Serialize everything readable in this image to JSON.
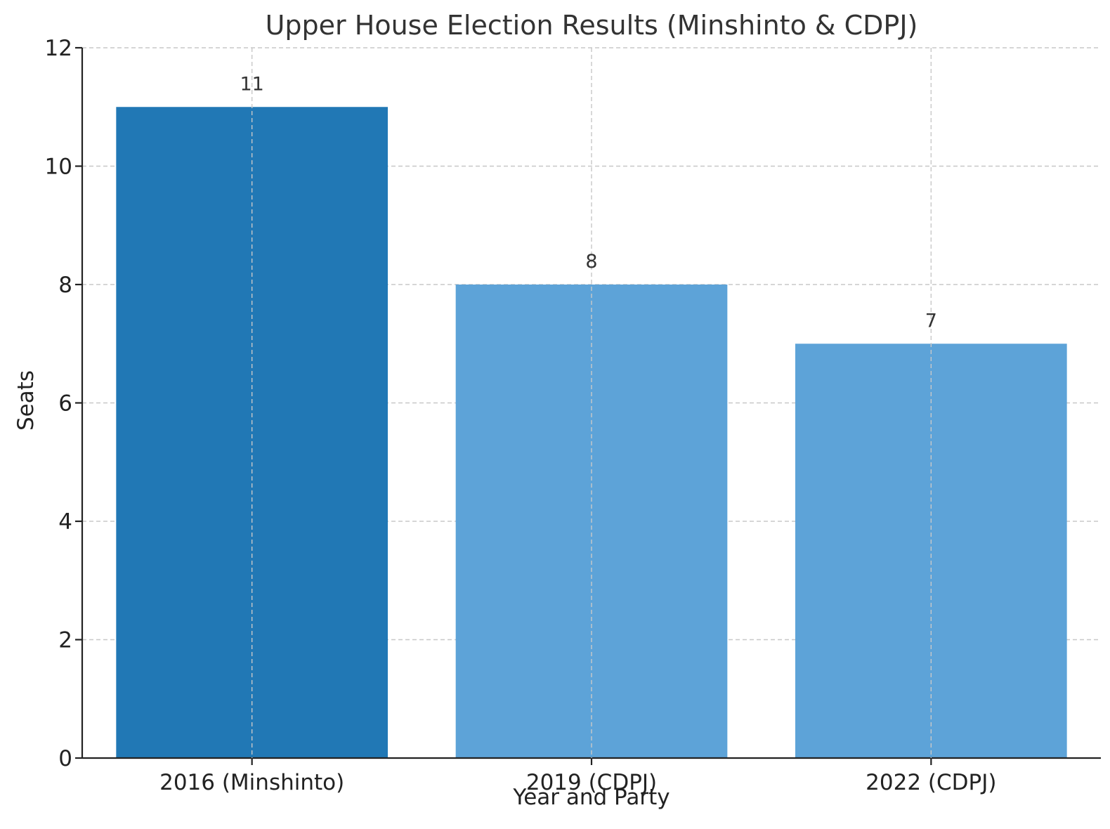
{
  "chart_data": {
    "type": "bar",
    "title": "Upper House Election Results (Minshinto & CDPJ)",
    "xlabel": "Year and Party",
    "ylabel": "Seats",
    "categories": [
      "2016 (Minshinto)",
      "2019 (CDPJ)",
      "2022 (CDPJ)"
    ],
    "values": [
      11,
      8,
      7
    ],
    "data_labels": [
      "11",
      "8",
      "7"
    ],
    "bar_colors": [
      "#2178b5",
      "#5da3d8",
      "#5da3d8"
    ],
    "ylim": [
      0,
      12
    ],
    "yticks": [
      0,
      2,
      4,
      6,
      8,
      10,
      12
    ],
    "ytick_labels": [
      "0",
      "2",
      "4",
      "6",
      "8",
      "10",
      "12"
    ],
    "grid": true,
    "legend": "none"
  }
}
